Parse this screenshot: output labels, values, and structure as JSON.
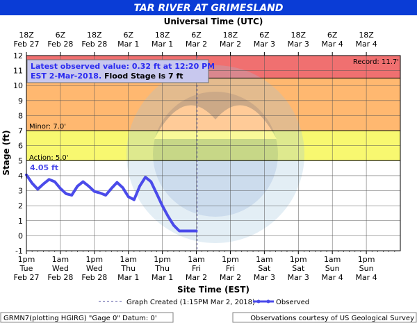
{
  "title": "TAR RIVER AT GRIMESLAND",
  "top_axis_title": "Universal Time (UTC)",
  "bottom_axis_title": "Site Time (EST)",
  "y_axis_title": "Stage (ft)",
  "top_ticks": [
    {
      "line1": "18Z",
      "line2": "Feb 27"
    },
    {
      "line1": "6Z",
      "line2": "Feb 28"
    },
    {
      "line1": "18Z",
      "line2": "Feb 28"
    },
    {
      "line1": "6Z",
      "line2": "Mar 1"
    },
    {
      "line1": "18Z",
      "line2": "Mar 1"
    },
    {
      "line1": "6Z",
      "line2": "Mar 2"
    },
    {
      "line1": "18Z",
      "line2": "Mar 2"
    },
    {
      "line1": "6Z",
      "line2": "Mar 3"
    },
    {
      "line1": "18Z",
      "line2": "Mar 3"
    },
    {
      "line1": "6Z",
      "line2": "Mar 4"
    },
    {
      "line1": "18Z",
      "line2": "Mar 4"
    }
  ],
  "bottom_ticks": [
    {
      "line1": "1pm",
      "line2": "Tue",
      "line3": "Feb 27"
    },
    {
      "line1": "1am",
      "line2": "Wed",
      "line3": "Feb 28"
    },
    {
      "line1": "1pm",
      "line2": "Wed",
      "line3": "Feb 28"
    },
    {
      "line1": "1am",
      "line2": "Thu",
      "line3": "Mar 1"
    },
    {
      "line1": "1pm",
      "line2": "Thu",
      "line3": "Mar 1"
    },
    {
      "line1": "1am",
      "line2": "Fri",
      "line3": "Mar 2"
    },
    {
      "line1": "1pm",
      "line2": "Fri",
      "line3": "Mar 2"
    },
    {
      "line1": "1am",
      "line2": "Sat",
      "line3": "Mar 3"
    },
    {
      "line1": "1pm",
      "line2": "Sat",
      "line3": "Mar 3"
    },
    {
      "line1": "1am",
      "line2": "Sun",
      "line3": "Mar 4"
    },
    {
      "line1": "1pm",
      "line2": "Sun",
      "line3": "Mar 4"
    }
  ],
  "info_box": {
    "line1": "Latest observed value: 0.32  ft at 12:20 PM",
    "line2_blue": "EST 2-Mar-2018.",
    "line2_black": " Flood Stage is 7 ft"
  },
  "zone_labels": {
    "record": "Record: 11.7'",
    "minor": "Minor: 7.0'",
    "action": "Action: 5.0'"
  },
  "first_value_label": "4.05 ft",
  "legend": {
    "created": "Graph Created (1:15PM Mar 2, 2018)",
    "observed": "Observed"
  },
  "footer": {
    "left": "GRMN7(plotting HGIRG) \"Gage 0\" Datum: 0'",
    "right": "Observations courtesy of US Geological Survey"
  },
  "colors": {
    "title_bar": "#0a3cd6",
    "record_band": "#f07070",
    "moderate_band": "#ffb870",
    "minor_band": "#f8f870",
    "observed_line": "#4b4bea",
    "created_line": "#5050a0",
    "info_text_blue": "#2a2af0"
  },
  "chart_data": {
    "type": "line",
    "title": "TAR RIVER AT GRIMESLAND",
    "xlabel": "Site Time (EST)",
    "ylabel": "Stage (ft)",
    "x_start_label": "1pm Tue Feb 27",
    "x_unit": "hours from 1pm Tue Feb 27 (EST)",
    "xlim": [
      0,
      132
    ],
    "ylim": [
      -1,
      12
    ],
    "y_ticks": [
      -1,
      0,
      1,
      2,
      3,
      4,
      5,
      6,
      7,
      8,
      9,
      10,
      11,
      12
    ],
    "grid": true,
    "thresholds": {
      "action": 5.0,
      "minor": 7.0,
      "record": 11.7
    },
    "graph_created_x": 60.25,
    "series": [
      {
        "name": "Observed",
        "x": [
          0,
          2,
          4,
          6,
          8,
          10,
          12,
          14,
          16,
          18,
          20,
          22,
          24,
          26,
          28,
          30,
          32,
          34,
          36,
          38,
          40,
          42,
          44,
          46,
          48,
          50,
          52,
          54,
          56,
          57.3,
          60
        ],
        "y": [
          4.05,
          3.5,
          3.1,
          3.45,
          3.75,
          3.6,
          3.15,
          2.8,
          2.7,
          3.3,
          3.6,
          3.3,
          2.95,
          2.85,
          2.7,
          3.15,
          3.55,
          3.2,
          2.6,
          2.4,
          3.3,
          3.9,
          3.6,
          2.8,
          2.0,
          1.3,
          0.7,
          0.32,
          0.32,
          0.32,
          0.32
        ]
      }
    ]
  }
}
